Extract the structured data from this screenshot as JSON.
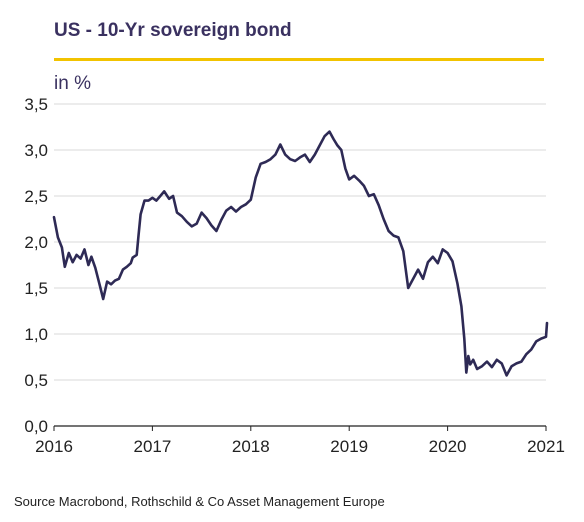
{
  "title": "US - 10-Yr sovereign bond",
  "unit_label": "in %",
  "source": "Source Macrobond, Rothschild & Co Asset Management Europe",
  "colors": {
    "line": "#2e2a55",
    "title": "#3a3160",
    "accent_rule": "#f2c300",
    "grid": "#d9d9d9"
  },
  "chart_data": {
    "type": "line",
    "title": "US - 10-Yr sovereign bond",
    "ylabel": "in %",
    "xlabel": "",
    "x_ticks": [
      "2016",
      "2017",
      "2018",
      "2019",
      "2020",
      "2021"
    ],
    "y_ticks": [
      "0,0",
      "0,5",
      "1,0",
      "1,5",
      "2,0",
      "2,5",
      "3,0",
      "3,5"
    ],
    "xlim": [
      2016,
      2021
    ],
    "ylim": [
      0,
      3.5
    ],
    "grid": "horizontal",
    "series": [
      {
        "x": [
          2016.0,
          2016.04,
          2016.08,
          2016.11,
          2016.15,
          2016.19,
          2016.23,
          2016.27,
          2016.31,
          2016.35,
          2016.38,
          2016.42,
          2016.46,
          2016.5,
          2016.54,
          2016.58,
          2016.62,
          2016.66,
          2016.7,
          2016.74,
          2016.78,
          2016.8,
          2016.84,
          2016.86,
          2016.88,
          2016.92,
          2016.96,
          2017.0,
          2017.04,
          2017.08,
          2017.12,
          2017.17,
          2017.21,
          2017.25,
          2017.3,
          2017.35,
          2017.4,
          2017.45,
          2017.5,
          2017.55,
          2017.6,
          2017.65,
          2017.7,
          2017.75,
          2017.8,
          2017.85,
          2017.9,
          2017.95,
          2018.0,
          2018.05,
          2018.1,
          2018.15,
          2018.2,
          2018.25,
          2018.3,
          2018.35,
          2018.4,
          2018.45,
          2018.5,
          2018.55,
          2018.6,
          2018.65,
          2018.7,
          2018.75,
          2018.8,
          2018.84,
          2018.88,
          2018.92,
          2018.96,
          2019.0,
          2019.05,
          2019.1,
          2019.15,
          2019.2,
          2019.25,
          2019.3,
          2019.35,
          2019.4,
          2019.45,
          2019.5,
          2019.55,
          2019.6,
          2019.65,
          2019.7,
          2019.75,
          2019.8,
          2019.85,
          2019.9,
          2019.95,
          2020.0,
          2020.05,
          2020.1,
          2020.14,
          2020.17,
          2020.19,
          2020.21,
          2020.23,
          2020.26,
          2020.3,
          2020.35,
          2020.4,
          2020.45,
          2020.5,
          2020.55,
          2020.6,
          2020.65,
          2020.7,
          2020.75,
          2020.8,
          2020.85,
          2020.9,
          2020.95,
          2021.0,
          2021.01
        ],
        "y": [
          2.27,
          2.05,
          1.94,
          1.73,
          1.88,
          1.78,
          1.86,
          1.82,
          1.92,
          1.75,
          1.84,
          1.72,
          1.55,
          1.38,
          1.57,
          1.54,
          1.58,
          1.6,
          1.7,
          1.73,
          1.77,
          1.83,
          1.86,
          2.08,
          2.3,
          2.45,
          2.45,
          2.48,
          2.45,
          2.5,
          2.55,
          2.47,
          2.5,
          2.32,
          2.28,
          2.22,
          2.17,
          2.2,
          2.32,
          2.26,
          2.18,
          2.12,
          2.24,
          2.34,
          2.38,
          2.33,
          2.38,
          2.41,
          2.46,
          2.7,
          2.85,
          2.87,
          2.9,
          2.95,
          3.06,
          2.95,
          2.9,
          2.88,
          2.92,
          2.95,
          2.87,
          2.95,
          3.05,
          3.15,
          3.2,
          3.12,
          3.05,
          3.0,
          2.8,
          2.68,
          2.72,
          2.67,
          2.61,
          2.5,
          2.52,
          2.4,
          2.25,
          2.12,
          2.07,
          2.05,
          1.9,
          1.5,
          1.6,
          1.7,
          1.6,
          1.78,
          1.84,
          1.77,
          1.92,
          1.88,
          1.79,
          1.55,
          1.3,
          0.95,
          0.58,
          0.76,
          0.67,
          0.72,
          0.62,
          0.65,
          0.7,
          0.64,
          0.72,
          0.68,
          0.55,
          0.65,
          0.68,
          0.7,
          0.78,
          0.83,
          0.92,
          0.95,
          0.97,
          1.12
        ]
      }
    ]
  }
}
